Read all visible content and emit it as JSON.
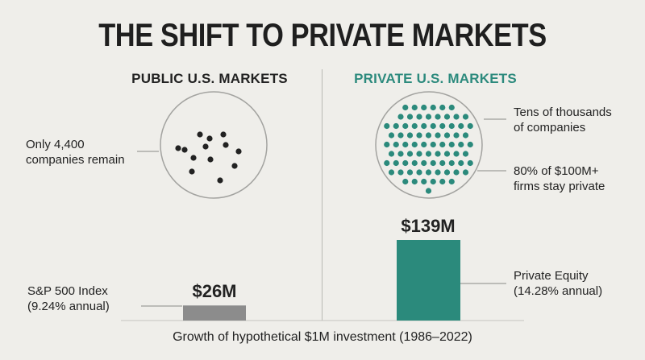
{
  "title": "THE SHIFT TO PRIVATE MARKETS",
  "public": {
    "heading": "PUBLIC U.S. MARKETS",
    "circle_label": "Only 4,400\ncompanies remain",
    "bar_label": "S&P 500 Index\n(9.24% annual)"
  },
  "private": {
    "heading": "PRIVATE U.S. MARKETS",
    "circle_label_top": "Tens of thousands\nof companies",
    "circle_label_bottom": "80% of $100M+\nfirms stay private",
    "bar_label": "Private Equity\n(14.28% annual)"
  },
  "footer": "Growth of hypothetical $1M investment (1986–2022)",
  "colors": {
    "public_bar": "#8c8c8c",
    "private_bar": "#2b8a7c",
    "private_dot": "#2b8a7c",
    "public_dot": "#222222",
    "accent_heading": "#2c8a7d"
  },
  "chart_data": {
    "type": "bar",
    "categories": [
      "S&P 500 Index",
      "Private Equity"
    ],
    "values": [
      26,
      139
    ],
    "value_labels": [
      "$26M",
      "$139M"
    ],
    "ylabel": "",
    "xlabel": "Growth of hypothetical $1M investment (1986–2022)",
    "grid": false
  }
}
